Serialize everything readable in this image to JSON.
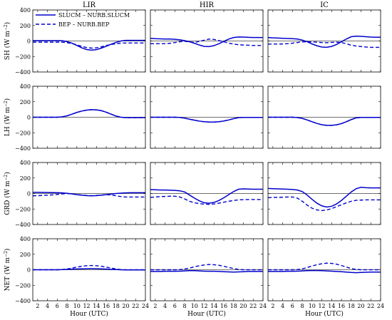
{
  "chart_data": {
    "type": "line",
    "columns": [
      "LIR",
      "HIR",
      "IC"
    ],
    "rows": [
      {
        "key": "SH",
        "ylabel_main": "SH (W m",
        "ylabel_sup": "−2",
        "ylabel_end": ")"
      },
      {
        "key": "LH",
        "ylabel_main": "LH (W m",
        "ylabel_sup": "−2",
        "ylabel_end": ")"
      },
      {
        "key": "GRD",
        "ylabel_main": "GRD (W m",
        "ylabel_sup": "−2",
        "ylabel_end": ")"
      },
      {
        "key": "NET",
        "ylabel_main": "NET (W m",
        "ylabel_sup": "−2",
        "ylabel_end": ")"
      }
    ],
    "xlabel": "Hour (UTC)",
    "xlim": [
      1,
      24
    ],
    "ylim": [
      -400,
      400
    ],
    "xticks": [
      2,
      4,
      6,
      8,
      10,
      12,
      14,
      16,
      18,
      20,
      22,
      24
    ],
    "yticks": [
      400,
      200,
      0,
      -200,
      -400
    ],
    "legend": {
      "placement": "top-left of first panel",
      "entries": [
        {
          "label": "SLUCM – NURB.SLUCM",
          "style": "solid"
        },
        {
          "label": "BEP – NURB.BEP",
          "style": "dashed"
        }
      ]
    },
    "colors": {
      "series": "#0000cc",
      "zero_line": "#707070"
    },
    "x": [
      1,
      2,
      3,
      4,
      5,
      6,
      7,
      8,
      9,
      10,
      11,
      12,
      13,
      14,
      15,
      16,
      17,
      18,
      19,
      20,
      21,
      22,
      23,
      24
    ],
    "panels": [
      {
        "row": "SH",
        "col": "LIR",
        "solid": [
          5,
          5,
          5,
          5,
          5,
          5,
          3,
          -8,
          -28,
          -58,
          -88,
          -110,
          -118,
          -112,
          -92,
          -68,
          -42,
          -18,
          0,
          8,
          8,
          8,
          8,
          8
        ],
        "dashed": [
          -15,
          -15,
          -15,
          -15,
          -15,
          -15,
          -15,
          -22,
          -32,
          -50,
          -70,
          -85,
          -92,
          -88,
          -75,
          -58,
          -45,
          -35,
          -28,
          -26,
          -26,
          -26,
          -26,
          -26
        ]
      },
      {
        "row": "SH",
        "col": "HIR",
        "solid": [
          35,
          30,
          28,
          25,
          25,
          22,
          15,
          5,
          -10,
          -30,
          -52,
          -70,
          -72,
          -60,
          -35,
          -5,
          25,
          45,
          52,
          50,
          47,
          45,
          45,
          45
        ],
        "dashed": [
          -35,
          -35,
          -35,
          -35,
          -30,
          -20,
          -10,
          -5,
          -10,
          -20,
          -5,
          10,
          25,
          20,
          5,
          -10,
          -28,
          -40,
          -48,
          -52,
          -55,
          -58,
          -58,
          -58
        ]
      },
      {
        "row": "SH",
        "col": "IC",
        "solid": [
          45,
          40,
          38,
          35,
          32,
          30,
          25,
          12,
          -10,
          -38,
          -62,
          -78,
          -82,
          -70,
          -45,
          -10,
          25,
          55,
          62,
          60,
          55,
          50,
          48,
          48
        ],
        "dashed": [
          -40,
          -40,
          -40,
          -38,
          -35,
          -28,
          -20,
          -12,
          -10,
          -12,
          -15,
          -20,
          -22,
          -18,
          -15,
          -20,
          -35,
          -55,
          -65,
          -72,
          -78,
          -82,
          -82,
          -82
        ]
      },
      {
        "row": "LH",
        "col": "LIR",
        "solid": [
          0,
          0,
          0,
          0,
          0,
          0,
          5,
          18,
          40,
          62,
          80,
          92,
          98,
          95,
          85,
          65,
          40,
          15,
          0,
          -5,
          -5,
          -5,
          -5,
          -5
        ],
        "dashed": [
          0,
          0,
          0,
          0,
          0,
          0,
          5,
          18,
          40,
          62,
          80,
          92,
          98,
          95,
          85,
          65,
          40,
          15,
          0,
          -5,
          -5,
          -5,
          -5,
          -5
        ]
      },
      {
        "row": "LH",
        "col": "HIR",
        "solid": [
          0,
          0,
          0,
          0,
          0,
          0,
          -2,
          -12,
          -25,
          -38,
          -50,
          -58,
          -62,
          -62,
          -58,
          -48,
          -35,
          -18,
          -5,
          -2,
          -2,
          -2,
          -2,
          -2
        ],
        "dashed": [
          0,
          0,
          0,
          0,
          0,
          0,
          -2,
          -12,
          -25,
          -38,
          -50,
          -58,
          -62,
          -62,
          -58,
          -48,
          -35,
          -18,
          -5,
          -2,
          -2,
          -2,
          -2,
          -2
        ]
      },
      {
        "row": "LH",
        "col": "IC",
        "solid": [
          0,
          0,
          0,
          0,
          0,
          0,
          -3,
          -15,
          -35,
          -58,
          -80,
          -97,
          -105,
          -105,
          -98,
          -82,
          -58,
          -30,
          -8,
          -2,
          -2,
          -2,
          -2,
          -2
        ],
        "dashed": [
          0,
          0,
          0,
          0,
          0,
          0,
          -3,
          -15,
          -35,
          -58,
          -80,
          -97,
          -105,
          -105,
          -98,
          -82,
          -58,
          -30,
          -8,
          -2,
          -2,
          -2,
          -2,
          -2
        ]
      },
      {
        "row": "GRD",
        "col": "LIR",
        "solid": [
          15,
          15,
          14,
          13,
          12,
          10,
          8,
          2,
          -5,
          -15,
          -22,
          -28,
          -30,
          -28,
          -22,
          -15,
          -8,
          0,
          5,
          8,
          10,
          10,
          10,
          10
        ],
        "dashed": [
          -30,
          -28,
          -25,
          -22,
          -18,
          -12,
          -5,
          0,
          -5,
          -12,
          -20,
          -25,
          -28,
          -25,
          -20,
          -15,
          -20,
          -30,
          -40,
          -45,
          -45,
          -45,
          -45,
          -45
        ]
      },
      {
        "row": "GRD",
        "col": "HIR",
        "solid": [
          50,
          48,
          45,
          45,
          42,
          40,
          35,
          20,
          -20,
          -60,
          -95,
          -120,
          -125,
          -115,
          -90,
          -55,
          -15,
          25,
          55,
          60,
          58,
          55,
          55,
          55
        ],
        "dashed": [
          -50,
          -45,
          -40,
          -38,
          -35,
          -35,
          -45,
          -70,
          -100,
          -120,
          -130,
          -138,
          -140,
          -135,
          -125,
          -112,
          -100,
          -90,
          -82,
          -80,
          -78,
          -78,
          -78,
          -78
        ]
      },
      {
        "row": "GRD",
        "col": "IC",
        "solid": [
          65,
          62,
          60,
          58,
          55,
          52,
          45,
          25,
          -20,
          -75,
          -125,
          -160,
          -175,
          -165,
          -135,
          -90,
          -35,
          20,
          62,
          80,
          75,
          72,
          72,
          72
        ],
        "dashed": [
          -55,
          -50,
          -50,
          -48,
          -45,
          -45,
          -60,
          -100,
          -150,
          -190,
          -212,
          -220,
          -212,
          -195,
          -170,
          -145,
          -120,
          -100,
          -88,
          -85,
          -82,
          -82,
          -82,
          -82
        ]
      },
      {
        "row": "NET",
        "col": "LIR",
        "solid": [
          0,
          0,
          0,
          0,
          0,
          0,
          2,
          5,
          8,
          10,
          12,
          14,
          15,
          14,
          12,
          9,
          5,
          2,
          0,
          -2,
          -2,
          -2,
          -2,
          -2
        ],
        "dashed": [
          0,
          0,
          0,
          0,
          0,
          0,
          3,
          10,
          22,
          35,
          45,
          52,
          55,
          52,
          45,
          35,
          22,
          10,
          2,
          0,
          0,
          0,
          0,
          0
        ]
      },
      {
        "row": "NET",
        "col": "HIR",
        "solid": [
          -22,
          -22,
          -22,
          -20,
          -20,
          -20,
          -18,
          -15,
          -12,
          -12,
          -15,
          -18,
          -20,
          -20,
          -22,
          -25,
          -28,
          -30,
          -28,
          -25,
          -22,
          -22,
          -22,
          -22
        ],
        "dashed": [
          0,
          0,
          0,
          0,
          0,
          0,
          2,
          10,
          22,
          38,
          52,
          62,
          68,
          65,
          58,
          45,
          30,
          15,
          5,
          0,
          0,
          0,
          0,
          0
        ]
      },
      {
        "row": "NET",
        "col": "IC",
        "solid": [
          -22,
          -22,
          -22,
          -22,
          -20,
          -20,
          -18,
          -15,
          -12,
          -10,
          -10,
          -12,
          -15,
          -18,
          -22,
          -25,
          -30,
          -35,
          -38,
          -35,
          -32,
          -30,
          -30,
          -30
        ],
        "dashed": [
          0,
          0,
          0,
          0,
          0,
          0,
          3,
          12,
          28,
          48,
          65,
          78,
          85,
          82,
          72,
          55,
          35,
          15,
          5,
          0,
          0,
          0,
          0,
          0
        ]
      }
    ]
  }
}
